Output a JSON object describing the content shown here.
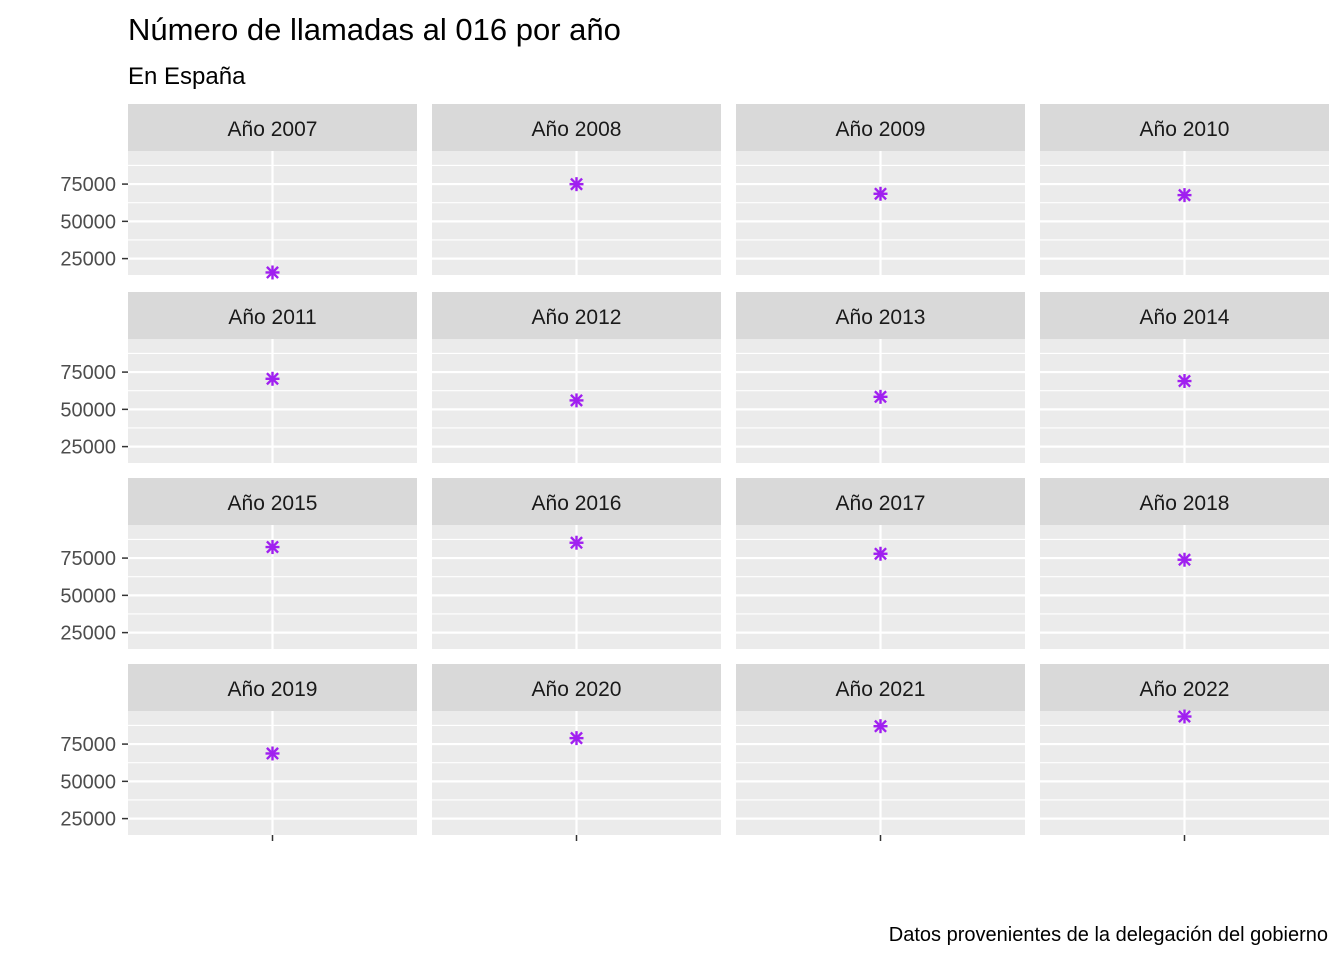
{
  "chart_data": {
    "type": "scatter",
    "title": "Número de llamadas al 016 por año",
    "subtitle": "En España",
    "caption": "Datos provenientes de la delegación del gobierno",
    "facet_by": "year",
    "facet_layout": {
      "rows": 4,
      "cols": 4
    },
    "facets": [
      {
        "label": "Año 2007",
        "y": 15700
      },
      {
        "label": "Año 2008",
        "y": 74950
      },
      {
        "label": "Año 2009",
        "y": 68500
      },
      {
        "label": "Año 2010",
        "y": 67600
      },
      {
        "label": "Año 2011",
        "y": 70500
      },
      {
        "label": "Año 2012",
        "y": 56000
      },
      {
        "label": "Año 2013",
        "y": 58400
      },
      {
        "label": "Año 2014",
        "y": 69000
      },
      {
        "label": "Año 2015",
        "y": 82400
      },
      {
        "label": "Año 2016",
        "y": 85300
      },
      {
        "label": "Año 2017",
        "y": 77900
      },
      {
        "label": "Año 2018",
        "y": 73900
      },
      {
        "label": "Año 2019",
        "y": 68700
      },
      {
        "label": "Año 2020",
        "y": 79000
      },
      {
        "label": "Año 2021",
        "y": 87000
      },
      {
        "label": "Año 2022",
        "y": 93500
      }
    ],
    "y_ticks": [
      25000,
      50000,
      75000
    ],
    "ylim": [
      14000,
      97200
    ],
    "y_scale": "shared",
    "x_tick_labels": "none",
    "xlabel": "",
    "ylabel": "",
    "legend": "none",
    "grid": true,
    "colors": {
      "marker": "#a020f0",
      "panel_background": "#ebebeb",
      "strip_background": "#d9d9d9",
      "grid": "#ffffff"
    },
    "marker_shape": "asterisk"
  }
}
